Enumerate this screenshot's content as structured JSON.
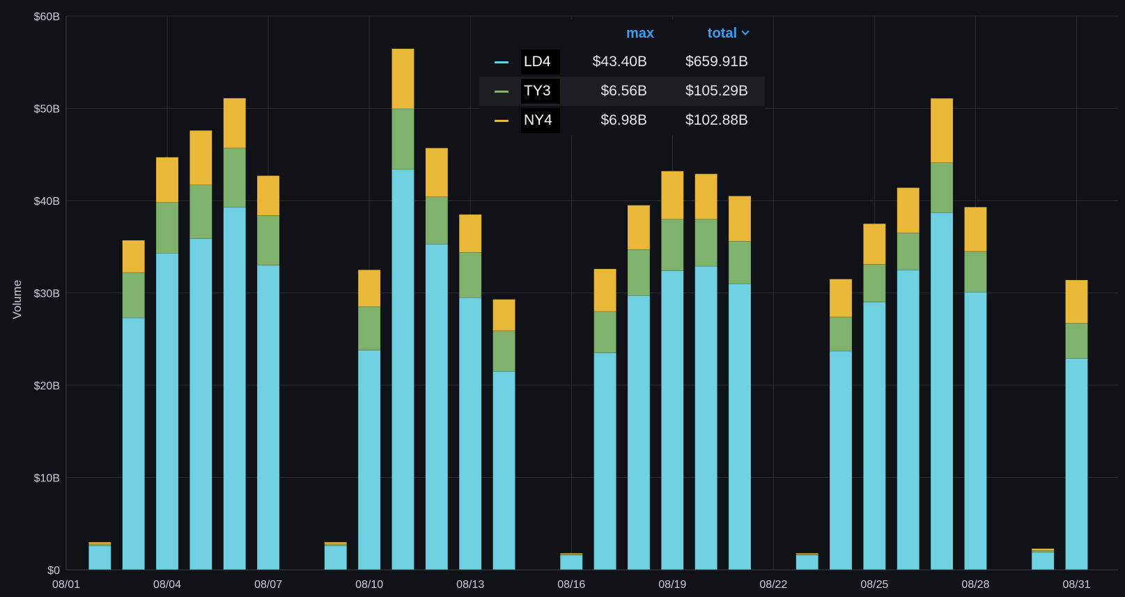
{
  "chart_data": {
    "type": "bar",
    "stacked": true,
    "ylabel": "Volume",
    "ylim": [
      0,
      60
    ],
    "y_unit": "B",
    "y_ticks": [
      "$0",
      "$10B",
      "$20B",
      "$30B",
      "$40B",
      "$50B",
      "$60B"
    ],
    "x_ticks": [
      "08/01",
      "08/04",
      "08/07",
      "08/10",
      "08/13",
      "08/16",
      "08/19",
      "08/22",
      "08/25",
      "08/28",
      "08/31"
    ],
    "x_tick_days": [
      1,
      4,
      7,
      10,
      13,
      16,
      19,
      22,
      25,
      28,
      31
    ],
    "x_range": [
      1,
      31.5
    ],
    "grid": true,
    "legend_placement": "top-center",
    "days": [
      2,
      3,
      4,
      5,
      6,
      7,
      9,
      10,
      11,
      12,
      13,
      14,
      16,
      17,
      18,
      19,
      20,
      21,
      23,
      24,
      25,
      26,
      27,
      28,
      30,
      31
    ],
    "series": [
      {
        "name": "LD4",
        "color": "#6ed0e0",
        "values": [
          2.6,
          27.3,
          34.3,
          35.9,
          39.3,
          33.0,
          2.6,
          23.8,
          43.4,
          35.3,
          29.5,
          21.5,
          1.6,
          23.5,
          29.7,
          32.4,
          32.9,
          31.0,
          1.6,
          23.7,
          29.0,
          32.5,
          38.7,
          30.1,
          1.9,
          22.9
        ]
      },
      {
        "name": "TY3",
        "color": "#7eb26d",
        "values": [
          0.2,
          4.9,
          5.5,
          5.8,
          6.4,
          5.4,
          0.2,
          4.7,
          6.56,
          5.1,
          4.9,
          4.4,
          0.1,
          4.5,
          5.0,
          5.6,
          5.1,
          4.6,
          0.1,
          3.7,
          4.1,
          4.0,
          5.4,
          4.4,
          0.2,
          3.8
        ]
      },
      {
        "name": "NY4",
        "color": "#eab839",
        "values": [
          0.2,
          3.5,
          4.9,
          5.9,
          5.4,
          4.3,
          0.2,
          4.0,
          6.5,
          5.3,
          4.1,
          3.4,
          0.1,
          4.6,
          4.8,
          5.2,
          4.9,
          4.9,
          0.1,
          4.1,
          4.4,
          4.9,
          6.98,
          4.8,
          0.2,
          4.7
        ]
      }
    ],
    "legend": {
      "columns": [
        "max",
        "total"
      ],
      "rows": [
        {
          "name": "LD4",
          "max": "$43.40B",
          "total": "$659.91B"
        },
        {
          "name": "TY3",
          "max": "$6.56B",
          "total": "$105.29B"
        },
        {
          "name": "NY4",
          "max": "$6.98B",
          "total": "$102.88B"
        }
      ]
    }
  }
}
